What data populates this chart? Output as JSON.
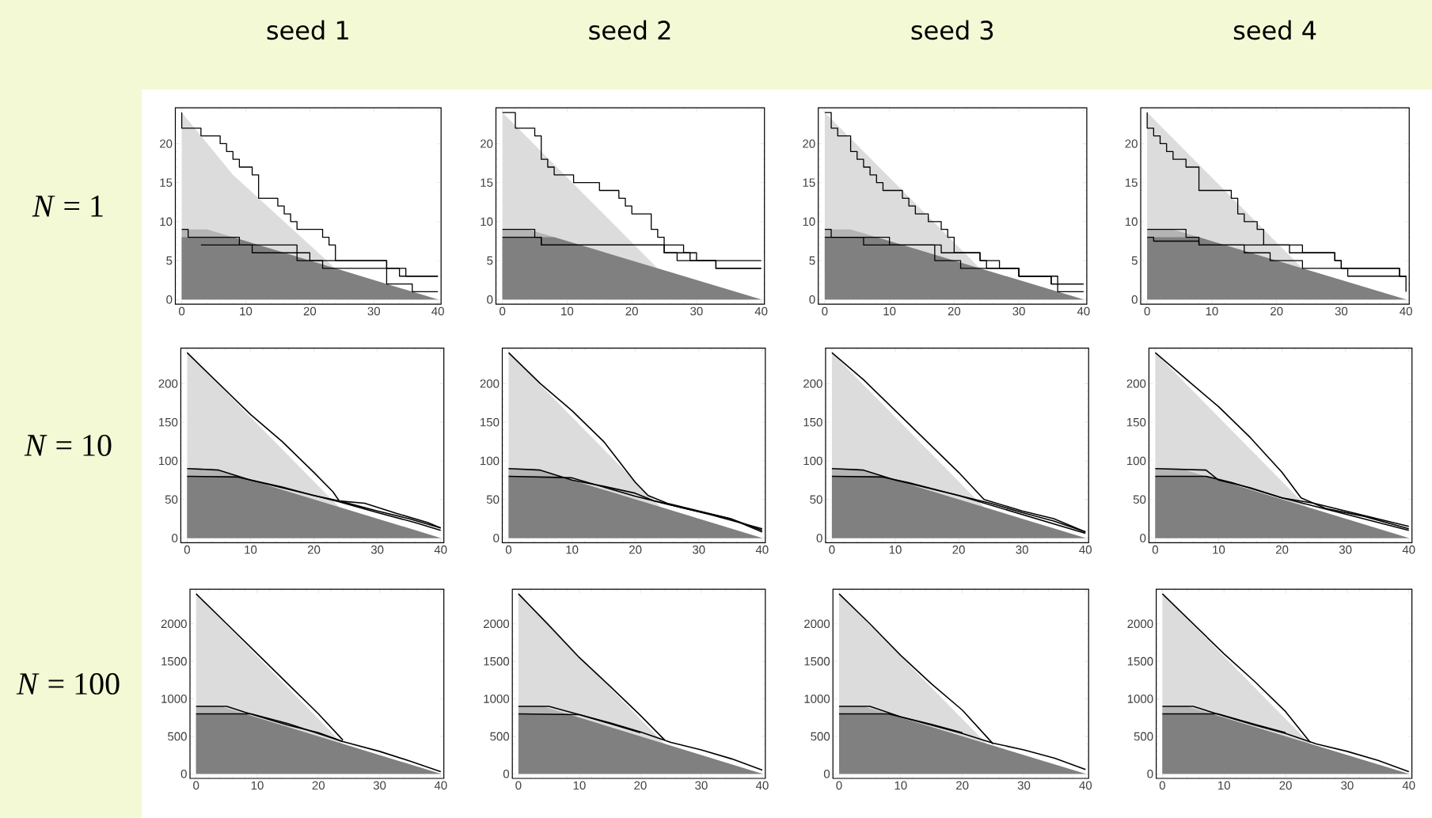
{
  "chart_data": [
    {
      "type": "area",
      "title": "seed 1",
      "ylabel": "*N* = 1",
      "xlim": [
        -1,
        40.5
      ],
      "ylim": [
        -0.6,
        24.6
      ],
      "xticks": [
        0,
        10,
        20,
        30,
        40
      ],
      "yticks": [
        0,
        5,
        10,
        15,
        20
      ],
      "series": [
        {
          "color": "#dcdcdc",
          "x": [
            0,
            8,
            24,
            40
          ],
          "values": [
            24,
            16,
            4,
            0
          ]
        },
        {
          "color": "#b4b4b4",
          "x": [
            0,
            4,
            8,
            40
          ],
          "values": [
            9,
            9,
            8,
            0
          ]
        },
        {
          "color": "#808080",
          "x": [
            0,
            8,
            40
          ],
          "values": [
            8,
            8,
            0
          ]
        },
        {
          "type": "step",
          "color": "#000000",
          "x": [
            0,
            0,
            3,
            6,
            7,
            8,
            9,
            11,
            12,
            15,
            16,
            17,
            18,
            22,
            23,
            24,
            32,
            34,
            40
          ],
          "values": [
            24,
            22,
            21,
            20,
            19,
            18,
            17,
            16,
            13,
            12,
            11,
            10,
            9,
            8,
            7,
            5,
            4,
            3,
            3
          ]
        },
        {
          "type": "step",
          "color": "#000000",
          "x": [
            0,
            1,
            9,
            18,
            22,
            32,
            36,
            40
          ],
          "values": [
            9,
            8,
            7,
            5,
            4,
            2,
            1,
            1
          ]
        },
        {
          "type": "step",
          "color": "#000000",
          "x": [
            3,
            11,
            20,
            24,
            32,
            35,
            40
          ],
          "values": [
            7,
            6,
            5,
            5,
            4,
            3,
            3
          ]
        }
      ]
    },
    {
      "type": "area",
      "title": "seed 2",
      "xlim": [
        -1,
        40.5
      ],
      "ylim": [
        -0.6,
        24.6
      ],
      "xticks": [
        0,
        10,
        20,
        30,
        40
      ],
      "yticks": [
        0,
        5,
        10,
        15,
        20
      ],
      "series": [
        {
          "color": "#dcdcdc",
          "x": [
            0,
            24,
            40
          ],
          "values": [
            24,
            4,
            0
          ]
        },
        {
          "color": "#b4b4b4",
          "x": [
            0,
            4,
            8,
            40
          ],
          "values": [
            9,
            9,
            8,
            0
          ]
        },
        {
          "color": "#808080",
          "x": [
            0,
            8,
            40
          ],
          "values": [
            8,
            8,
            0
          ]
        },
        {
          "type": "step",
          "color": "#000000",
          "x": [
            0,
            2,
            5,
            6,
            7,
            8,
            11,
            15,
            18,
            19,
            20,
            23,
            24,
            25,
            28,
            30,
            33,
            40
          ],
          "values": [
            24,
            22,
            21,
            18,
            17,
            16,
            15,
            14,
            13,
            12,
            11,
            9,
            8,
            7,
            6,
            5,
            4,
            4
          ]
        },
        {
          "type": "step",
          "color": "#000000",
          "x": [
            0,
            5,
            6,
            25,
            27,
            30,
            33,
            40
          ],
          "values": [
            9,
            8,
            7,
            6,
            5,
            5,
            4,
            4
          ]
        },
        {
          "type": "step",
          "color": "#000000",
          "x": [
            0,
            6,
            25,
            29,
            40
          ],
          "values": [
            8,
            7,
            6,
            5,
            5
          ]
        }
      ]
    },
    {
      "type": "area",
      "title": "seed 3",
      "xlim": [
        -1,
        40.5
      ],
      "ylim": [
        -0.6,
        24.6
      ],
      "xticks": [
        0,
        10,
        20,
        30,
        40
      ],
      "yticks": [
        0,
        5,
        10,
        15,
        20
      ],
      "series": [
        {
          "color": "#dcdcdc",
          "x": [
            0,
            24,
            40
          ],
          "values": [
            24,
            4,
            0
          ]
        },
        {
          "color": "#b4b4b4",
          "x": [
            0,
            4,
            8,
            40
          ],
          "values": [
            9,
            9,
            8,
            0
          ]
        },
        {
          "color": "#808080",
          "x": [
            0,
            8,
            40
          ],
          "values": [
            8,
            8,
            0
          ]
        },
        {
          "type": "step",
          "color": "#000000",
          "x": [
            0,
            1,
            2,
            4,
            5,
            6,
            7,
            8,
            9,
            12,
            13,
            14,
            16,
            18,
            19,
            20,
            24,
            25,
            30,
            35,
            40
          ],
          "values": [
            24,
            22,
            21,
            19,
            18,
            17,
            16,
            15,
            14,
            13,
            12,
            11,
            10,
            9,
            8,
            6,
            5,
            4,
            3,
            2,
            2
          ]
        },
        {
          "type": "step",
          "color": "#000000",
          "x": [
            0,
            1,
            10,
            17,
            18,
            21,
            30,
            35,
            40
          ],
          "values": [
            9,
            8,
            7,
            5,
            5,
            4,
            3,
            2,
            2
          ]
        },
        {
          "type": "step",
          "color": "#000000",
          "x": [
            0,
            6,
            18,
            24,
            27,
            30,
            35,
            36,
            40
          ],
          "values": [
            8,
            7,
            6,
            5,
            4,
            3,
            3,
            1,
            1
          ]
        }
      ]
    },
    {
      "type": "area",
      "title": "seed 4",
      "xlim": [
        -1,
        40.5
      ],
      "ylim": [
        -0.6,
        24.6
      ],
      "xticks": [
        0,
        10,
        20,
        30,
        40
      ],
      "yticks": [
        0,
        5,
        10,
        15,
        20
      ],
      "series": [
        {
          "color": "#dcdcdc",
          "x": [
            0,
            24,
            40
          ],
          "values": [
            24,
            4,
            0
          ]
        },
        {
          "color": "#b4b4b4",
          "x": [
            0,
            4,
            8,
            40
          ],
          "values": [
            9,
            9,
            8,
            0
          ]
        },
        {
          "color": "#808080",
          "x": [
            0,
            8,
            40
          ],
          "values": [
            8,
            8,
            0
          ]
        },
        {
          "type": "step",
          "color": "#000000",
          "x": [
            0,
            0,
            1,
            2,
            3,
            4,
            6,
            8,
            13,
            14,
            15,
            17,
            18,
            22,
            29,
            30,
            39,
            40
          ],
          "values": [
            24,
            22,
            21,
            20,
            19,
            18,
            17,
            14,
            13,
            11,
            10,
            9,
            7,
            6,
            5,
            4,
            3,
            3
          ]
        },
        {
          "type": "step",
          "color": "#000000",
          "x": [
            0,
            6,
            8,
            22,
            24,
            29,
            30,
            39,
            40
          ],
          "values": [
            9,
            8,
            7,
            7,
            6,
            5,
            4,
            3,
            3
          ]
        },
        {
          "type": "step",
          "color": "#000000",
          "x": [
            0,
            1,
            8,
            15,
            19,
            24,
            31,
            39,
            40
          ],
          "values": [
            8,
            7.5,
            7,
            6,
            5,
            4,
            3,
            3,
            1
          ]
        }
      ]
    },
    {
      "type": "area",
      "ylabel": "*N* = 10",
      "xlim": [
        -1,
        40.5
      ],
      "ylim": [
        -6,
        246
      ],
      "xticks": [
        0,
        10,
        20,
        30,
        40
      ],
      "yticks": [
        0,
        50,
        100,
        150,
        200
      ],
      "series": [
        {
          "color": "#dcdcdc",
          "x": [
            0,
            24,
            40
          ],
          "values": [
            240,
            40,
            0
          ]
        },
        {
          "color": "#b4b4b4",
          "x": [
            0,
            4,
            8,
            40
          ],
          "values": [
            90,
            90,
            80,
            0
          ]
        },
        {
          "color": "#808080",
          "x": [
            0,
            8,
            40
          ],
          "values": [
            80,
            80,
            0
          ]
        },
        {
          "type": "line",
          "color": "#000000",
          "x": [
            0,
            5,
            10,
            15,
            20,
            23,
            24,
            28,
            33,
            38,
            40
          ],
          "values": [
            240,
            200,
            160,
            125,
            85,
            60,
            48,
            45,
            32,
            20,
            13
          ]
        },
        {
          "type": "line",
          "color": "#000000",
          "x": [
            0,
            5,
            10,
            15,
            20,
            24,
            30,
            35,
            40
          ],
          "values": [
            90,
            88,
            75,
            65,
            55,
            48,
            35,
            25,
            13
          ]
        },
        {
          "type": "line",
          "color": "#000000",
          "x": [
            0,
            8,
            15,
            20,
            24,
            30,
            36,
            40
          ],
          "values": [
            80,
            79,
            66,
            55,
            47,
            33,
            20,
            10
          ]
        }
      ]
    },
    {
      "type": "area",
      "xlim": [
        -1,
        40.5
      ],
      "ylim": [
        -6,
        246
      ],
      "xticks": [
        0,
        10,
        20,
        30,
        40
      ],
      "yticks": [
        0,
        50,
        100,
        150,
        200
      ],
      "series": [
        {
          "color": "#dcdcdc",
          "x": [
            0,
            24,
            40
          ],
          "values": [
            240,
            40,
            0
          ]
        },
        {
          "color": "#b4b4b4",
          "x": [
            0,
            4,
            8,
            40
          ],
          "values": [
            90,
            90,
            80,
            0
          ]
        },
        {
          "color": "#808080",
          "x": [
            0,
            8,
            40
          ],
          "values": [
            80,
            80,
            0
          ]
        },
        {
          "type": "line",
          "color": "#000000",
          "x": [
            0,
            5,
            10,
            15,
            20,
            22,
            25,
            30,
            35,
            40
          ],
          "values": [
            240,
            200,
            165,
            125,
            72,
            55,
            45,
            35,
            25,
            10
          ]
        },
        {
          "type": "line",
          "color": "#000000",
          "x": [
            0,
            5,
            10,
            15,
            20,
            23,
            28,
            35,
            40
          ],
          "values": [
            90,
            88,
            75,
            67,
            58,
            48,
            38,
            25,
            8
          ]
        },
        {
          "type": "line",
          "color": "#000000",
          "x": [
            0,
            10,
            15,
            20,
            25,
            32,
            40
          ],
          "values": [
            80,
            78,
            66,
            54,
            44,
            30,
            12
          ]
        }
      ]
    },
    {
      "type": "area",
      "xlim": [
        -1,
        40.5
      ],
      "ylim": [
        -6,
        246
      ],
      "xticks": [
        0,
        10,
        20,
        30,
        40
      ],
      "yticks": [
        0,
        50,
        100,
        150,
        200
      ],
      "series": [
        {
          "color": "#dcdcdc",
          "x": [
            0,
            24,
            40
          ],
          "values": [
            240,
            40,
            0
          ]
        },
        {
          "color": "#b4b4b4",
          "x": [
            0,
            4,
            8,
            40
          ],
          "values": [
            90,
            90,
            80,
            0
          ]
        },
        {
          "color": "#808080",
          "x": [
            0,
            8,
            40
          ],
          "values": [
            80,
            80,
            0
          ]
        },
        {
          "type": "line",
          "color": "#000000",
          "x": [
            0,
            5,
            10,
            15,
            20,
            24,
            30,
            35,
            40
          ],
          "values": [
            240,
            205,
            165,
            125,
            85,
            50,
            35,
            25,
            8
          ]
        },
        {
          "type": "line",
          "color": "#000000",
          "x": [
            0,
            5,
            10,
            15,
            20,
            25,
            30,
            35,
            40
          ],
          "values": [
            90,
            88,
            75,
            65,
            55,
            45,
            33,
            22,
            8
          ]
        },
        {
          "type": "line",
          "color": "#000000",
          "x": [
            0,
            8,
            12,
            20,
            40
          ],
          "values": [
            80,
            79,
            72,
            55,
            6
          ]
        }
      ]
    },
    {
      "type": "area",
      "xlim": [
        -1,
        40.5
      ],
      "ylim": [
        -6,
        246
      ],
      "xticks": [
        0,
        10,
        20,
        30,
        40
      ],
      "yticks": [
        0,
        50,
        100,
        150,
        200
      ],
      "series": [
        {
          "color": "#dcdcdc",
          "x": [
            0,
            24,
            40
          ],
          "values": [
            240,
            40,
            0
          ]
        },
        {
          "color": "#b4b4b4",
          "x": [
            0,
            4,
            8,
            40
          ],
          "values": [
            90,
            90,
            80,
            0
          ]
        },
        {
          "color": "#808080",
          "x": [
            0,
            8,
            40
          ],
          "values": [
            80,
            80,
            0
          ]
        },
        {
          "type": "line",
          "color": "#000000",
          "x": [
            0,
            5,
            10,
            15,
            20,
            23,
            27,
            33,
            40
          ],
          "values": [
            240,
            205,
            170,
            130,
            85,
            52,
            38,
            28,
            12
          ]
        },
        {
          "type": "line",
          "color": "#000000",
          "x": [
            0,
            8,
            10,
            15,
            20,
            25,
            30,
            35,
            40
          ],
          "values": [
            90,
            88,
            75,
            65,
            52,
            45,
            35,
            25,
            15
          ]
        },
        {
          "type": "line",
          "color": "#000000",
          "x": [
            0,
            8,
            12,
            20,
            40
          ],
          "values": [
            80,
            80,
            72,
            52,
            10
          ]
        }
      ]
    },
    {
      "type": "area",
      "ylabel": "*N* = 100",
      "xlim": [
        -1,
        40.5
      ],
      "ylim": [
        -60,
        2460
      ],
      "xticks": [
        0,
        10,
        20,
        30,
        40
      ],
      "yticks": [
        0,
        500,
        1000,
        1500,
        2000
      ],
      "series": [
        {
          "color": "#dcdcdc",
          "x": [
            0,
            24,
            40
          ],
          "values": [
            2400,
            400,
            0
          ]
        },
        {
          "color": "#b4b4b4",
          "x": [
            0,
            4,
            8,
            40
          ],
          "values": [
            900,
            900,
            800,
            0
          ]
        },
        {
          "color": "#808080",
          "x": [
            0,
            8,
            40
          ],
          "values": [
            800,
            800,
            0
          ]
        },
        {
          "type": "line",
          "color": "#000000",
          "x": [
            0,
            5,
            10,
            15,
            20,
            24
          ],
          "values": [
            2400,
            2000,
            1600,
            1200,
            800,
            450
          ]
        },
        {
          "type": "line",
          "color": "#000000",
          "x": [
            0,
            5,
            8,
            15,
            20,
            24,
            30,
            35,
            40
          ],
          "values": [
            900,
            900,
            820,
            650,
            550,
            430,
            300,
            170,
            30
          ]
        },
        {
          "type": "line",
          "color": "#000000",
          "x": [
            0,
            9,
            15,
            24
          ],
          "values": [
            800,
            800,
            670,
            430
          ]
        }
      ]
    },
    {
      "type": "area",
      "xlim": [
        -1,
        40.5
      ],
      "ylim": [
        -60,
        2460
      ],
      "xticks": [
        0,
        10,
        20,
        30,
        40
      ],
      "yticks": [
        0,
        500,
        1000,
        1500,
        2000
      ],
      "series": [
        {
          "color": "#dcdcdc",
          "x": [
            0,
            24,
            40
          ],
          "values": [
            2400,
            400,
            0
          ]
        },
        {
          "color": "#b4b4b4",
          "x": [
            0,
            4,
            8,
            40
          ],
          "values": [
            900,
            900,
            800,
            0
          ]
        },
        {
          "color": "#808080",
          "x": [
            0,
            8,
            40
          ],
          "values": [
            800,
            800,
            0
          ]
        },
        {
          "type": "line",
          "color": "#000000",
          "x": [
            0,
            5,
            10,
            15,
            20,
            24
          ],
          "values": [
            2400,
            1980,
            1550,
            1170,
            780,
            450
          ]
        },
        {
          "type": "line",
          "color": "#000000",
          "x": [
            0,
            5,
            10,
            15,
            20,
            25,
            30,
            35,
            40
          ],
          "values": [
            900,
            900,
            790,
            680,
            560,
            420,
            320,
            200,
            50
          ]
        },
        {
          "type": "line",
          "color": "#000000",
          "x": [
            0,
            10,
            15,
            20
          ],
          "values": [
            800,
            790,
            670,
            550
          ]
        }
      ]
    },
    {
      "type": "area",
      "xlim": [
        -1,
        40.5
      ],
      "ylim": [
        -60,
        2460
      ],
      "xticks": [
        0,
        10,
        20,
        30,
        40
      ],
      "yticks": [
        0,
        500,
        1000,
        1500,
        2000
      ],
      "series": [
        {
          "color": "#dcdcdc",
          "x": [
            0,
            24,
            40
          ],
          "values": [
            2400,
            400,
            0
          ]
        },
        {
          "color": "#b4b4b4",
          "x": [
            0,
            4,
            8,
            40
          ],
          "values": [
            900,
            900,
            800,
            0
          ]
        },
        {
          "color": "#808080",
          "x": [
            0,
            8,
            40
          ],
          "values": [
            800,
            800,
            0
          ]
        },
        {
          "type": "line",
          "color": "#000000",
          "x": [
            0,
            5,
            10,
            15,
            20,
            25
          ],
          "values": [
            2400,
            2000,
            1580,
            1200,
            850,
            400
          ]
        },
        {
          "type": "line",
          "color": "#000000",
          "x": [
            0,
            5,
            10,
            15,
            20,
            25,
            30,
            35,
            40
          ],
          "values": [
            900,
            900,
            760,
            650,
            540,
            410,
            320,
            210,
            60
          ]
        },
        {
          "type": "line",
          "color": "#000000",
          "x": [
            0,
            8,
            15,
            20
          ],
          "values": [
            800,
            800,
            660,
            550
          ]
        }
      ]
    },
    {
      "type": "area",
      "xlim": [
        -1,
        40.5
      ],
      "ylim": [
        -60,
        2460
      ],
      "xticks": [
        0,
        10,
        20,
        30,
        40
      ],
      "yticks": [
        0,
        500,
        1000,
        1500,
        2000
      ],
      "series": [
        {
          "color": "#dcdcdc",
          "x": [
            0,
            24,
            40
          ],
          "values": [
            2400,
            400,
            0
          ]
        },
        {
          "color": "#b4b4b4",
          "x": [
            0,
            4,
            8,
            40
          ],
          "values": [
            900,
            900,
            800,
            0
          ]
        },
        {
          "color": "#808080",
          "x": [
            0,
            8,
            40
          ],
          "values": [
            800,
            800,
            0
          ]
        },
        {
          "type": "line",
          "color": "#000000",
          "x": [
            0,
            5,
            10,
            15,
            20,
            24
          ],
          "values": [
            2400,
            2000,
            1600,
            1230,
            830,
            420
          ]
        },
        {
          "type": "line",
          "color": "#000000",
          "x": [
            0,
            5,
            10,
            15,
            20,
            25,
            30,
            35,
            40
          ],
          "values": [
            900,
            900,
            770,
            650,
            540,
            400,
            300,
            180,
            30
          ]
        },
        {
          "type": "line",
          "color": "#000000",
          "x": [
            0,
            9,
            15,
            20
          ],
          "values": [
            800,
            800,
            660,
            550
          ]
        }
      ]
    }
  ]
}
